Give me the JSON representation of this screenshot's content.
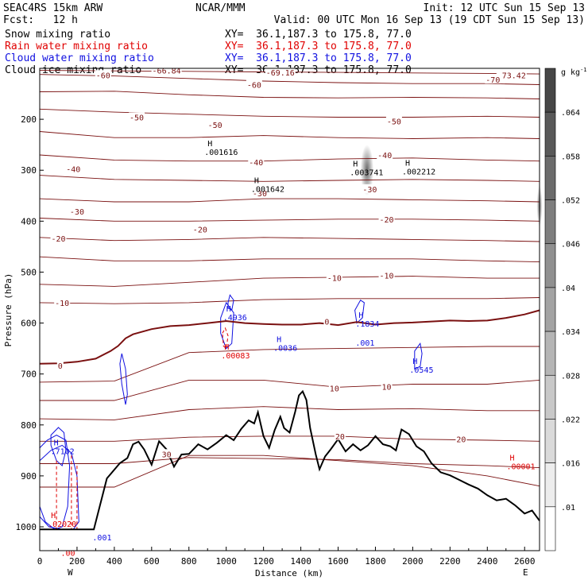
{
  "header": {
    "left_line1": "SEAC4RS 15km ARW",
    "left_line2": "Fcst:   12 h",
    "center_line1": "NCAR/MMM",
    "init": "Init: 12 UTC Sun 15 Sep 13",
    "valid": "Valid: 00 UTC Mon 16 Sep 13 (19 CDT Sun 15 Sep 13)",
    "fields": [
      {
        "name": "Snow mixing ratio",
        "xy": "XY=  36.1,187.3 to 175.8, 77.0",
        "color": "#000000"
      },
      {
        "name": "Rain water mixing ratio",
        "xy": "XY=  36.1,187.3 to 175.8, 77.0",
        "color": "#e00000"
      },
      {
        "name": "Cloud water mixing ratio",
        "xy": "XY=  36.1,187.3 to 175.8, 77.0",
        "color": "#1010e0"
      },
      {
        "name": "Cloud ice mixing ratio",
        "xy": "XY=  36.1,187.3 to 175.8, 77.0",
        "color": "#000000"
      }
    ]
  },
  "colors": {
    "temperature": "#7a1010",
    "freezing": "#7a1010",
    "terrain": "#000000",
    "rain": "#e00000",
    "cloud_water": "#1010e0",
    "snow_shade": "#404040"
  },
  "chart_data": {
    "type": "contour",
    "xlabel": "Distance (km)",
    "ylabel": "Pressure (hPa)",
    "xlim": [
      0,
      2680
    ],
    "ylim_hpa": [
      100,
      1030
    ],
    "x_ticks": [
      0,
      200,
      400,
      600,
      800,
      1000,
      1200,
      1400,
      1600,
      1800,
      2000,
      2200,
      2400,
      2600
    ],
    "y_ticks": [
      200,
      300,
      400,
      500,
      600,
      700,
      800,
      900,
      1000
    ],
    "x_end_labels": {
      "left": "W",
      "right": "E"
    },
    "colorbar": {
      "unit": "g kg",
      "unit_sup": "-1",
      "levels": [
        ".064",
        ".058",
        ".052",
        ".046",
        ".04",
        ".034",
        ".028",
        ".022",
        ".016",
        ".01"
      ]
    },
    "temperature_labels": [
      {
        "x": 340,
        "p": 113,
        "text": "-60"
      },
      {
        "x": 1150,
        "p": 132,
        "text": "-60"
      },
      {
        "x": 2530,
        "p": 113,
        "text": "-73.42"
      },
      {
        "x": 2430,
        "p": 122,
        "text": "-70"
      },
      {
        "x": 1290,
        "p": 108,
        "text": "-69.16"
      },
      {
        "x": 680,
        "p": 104,
        "text": "-66.84"
      },
      {
        "x": 520,
        "p": 196,
        "text": "-50"
      },
      {
        "x": 940,
        "p": 211,
        "text": "-50"
      },
      {
        "x": 1900,
        "p": 204,
        "text": "-50"
      },
      {
        "x": 180,
        "p": 297,
        "text": "-40"
      },
      {
        "x": 1160,
        "p": 284,
        "text": "-40"
      },
      {
        "x": 1850,
        "p": 270,
        "text": "-40"
      },
      {
        "x": 1180,
        "p": 345,
        "text": "-30"
      },
      {
        "x": 200,
        "p": 381,
        "text": "-30"
      },
      {
        "x": 1770,
        "p": 337,
        "text": "-30"
      },
      {
        "x": 100,
        "p": 434,
        "text": "-20"
      },
      {
        "x": 860,
        "p": 416,
        "text": "-20"
      },
      {
        "x": 1860,
        "p": 396,
        "text": "-20"
      },
      {
        "x": 1580,
        "p": 511,
        "text": "-10"
      },
      {
        "x": 1860,
        "p": 506,
        "text": "-10"
      },
      {
        "x": 120,
        "p": 560,
        "text": "-10"
      },
      {
        "x": 110,
        "p": 683,
        "text": "0"
      },
      {
        "x": 1540,
        "p": 597,
        "text": "0"
      },
      {
        "x": 1580,
        "p": 728,
        "text": "10"
      },
      {
        "x": 1860,
        "p": 725,
        "text": "10"
      },
      {
        "x": 1610,
        "p": 822,
        "text": "20"
      },
      {
        "x": 2260,
        "p": 828,
        "text": "20"
      },
      {
        "x": 680,
        "p": 857,
        "text": "30"
      }
    ],
    "extrema_labels": [
      {
        "x": 900,
        "p": 253,
        "h": "H",
        "value": ".001616",
        "color": "#000000"
      },
      {
        "x": 1150,
        "p": 325,
        "h": "H",
        "value": ".001642",
        "color": "#000000"
      },
      {
        "x": 1680,
        "p": 293,
        "h": "H",
        "value": ".003741",
        "color": "#000000"
      },
      {
        "x": 1960,
        "p": 291,
        "h": "H",
        "value": ".002212",
        "color": "#000000"
      },
      {
        "x": 1000,
        "p": 577,
        "h": "H",
        "value": ".4936",
        "color": "#1010e0"
      },
      {
        "x": 990,
        "p": 652,
        "h": "H",
        "value": ".00083",
        "color": "#e00000"
      },
      {
        "x": 1270,
        "p": 637,
        "h": "H",
        "value": ".0036",
        "color": "#1010e0"
      },
      {
        "x": 1710,
        "p": 590,
        "h": "H",
        "value": ".1834",
        "color": "#1010e0"
      },
      {
        "x": 1710,
        "p": 627,
        "h": "",
        "value": ".001",
        "color": "#1010e0"
      },
      {
        "x": 2000,
        "p": 680,
        "h": "H",
        "value": ".0545",
        "color": "#1010e0"
      },
      {
        "x": 2520,
        "p": 870,
        "h": "H",
        "value": ".00001",
        "color": "#e00000"
      },
      {
        "x": 75,
        "p": 840,
        "h": "H",
        "value": ".7102",
        "color": "#1010e0"
      },
      {
        "x": 60,
        "p": 983,
        "h": "H",
        "value": ".02020",
        "color": "#e00000"
      },
      {
        "x": 300,
        "p": 1009,
        "h": "",
        "value": ".001",
        "color": "#1010e0"
      },
      {
        "x": 130,
        "p": 1040,
        "h": "",
        "value": ".00",
        "color": "#e00000"
      }
    ],
    "terrain": {
      "x": [
        0,
        80,
        160,
        240,
        290,
        360,
        430,
        470,
        500,
        530,
        560,
        600,
        640,
        680,
        720,
        760,
        800,
        850,
        900,
        950,
        1000,
        1040,
        1080,
        1120,
        1150,
        1170,
        1200,
        1230,
        1260,
        1290,
        1310,
        1340,
        1370,
        1390,
        1410,
        1430,
        1450,
        1480,
        1500,
        1530,
        1560,
        1600,
        1640,
        1680,
        1720,
        1760,
        1800,
        1840,
        1880,
        1910,
        1940,
        1980,
        2020,
        2060,
        2100,
        2150,
        2200,
        2250,
        2300,
        2350,
        2400,
        2450,
        2500,
        2550,
        2600,
        2640,
        2680
      ],
      "p": [
        1005,
        1005,
        1005,
        1005,
        1005,
        905,
        875,
        865,
        838,
        833,
        848,
        878,
        832,
        848,
        882,
        858,
        857,
        838,
        848,
        835,
        820,
        830,
        808,
        791,
        797,
        775,
        822,
        845,
        810,
        784,
        806,
        815,
        774,
        742,
        734,
        751,
        806,
        858,
        887,
        862,
        848,
        828,
        852,
        838,
        850,
        840,
        822,
        838,
        842,
        850,
        809,
        818,
        842,
        852,
        875,
        893,
        899,
        908,
        917,
        925,
        938,
        948,
        945,
        958,
        974,
        968,
        988
      ]
    },
    "freezing_line": {
      "x": [
        0,
        100,
        200,
        300,
        380,
        420,
        460,
        500,
        600,
        700,
        800,
        900,
        1000,
        1100,
        1200,
        1300,
        1400,
        1500,
        1600,
        1700,
        1800,
        1900,
        2000,
        2100,
        2200,
        2300,
        2400,
        2500,
        2600,
        2680
      ],
      "p": [
        680,
        679,
        676,
        670,
        655,
        645,
        630,
        622,
        612,
        606,
        604,
        600,
        596,
        600,
        602,
        603,
        603,
        600,
        604,
        598,
        603,
        600,
        599,
        597,
        595,
        596,
        595,
        590,
        583,
        575
      ]
    },
    "temperature_contours": [
      {
        "value": -70,
        "x": [
          0,
          400,
          800,
          1200,
          1600,
          2000,
          2400,
          2680
        ],
        "p": [
          104,
          105,
          106,
          107,
          108,
          109,
          110,
          111
        ]
      },
      {
        "value": -60,
        "x": [
          0,
          400,
          800,
          1200,
          1600,
          2000,
          2400,
          2680
        ],
        "p": [
          112,
          115,
          120,
          125,
          128,
          130,
          130,
          132
        ]
      },
      {
        "value": -55,
        "x": [
          0,
          400,
          800,
          1200,
          1600,
          2000,
          2400,
          2680
        ],
        "p": [
          146,
          145,
          152,
          157,
          158,
          157,
          158,
          160
        ]
      },
      {
        "value": -50,
        "x": [
          0,
          400,
          800,
          1200,
          1600,
          2000,
          2400,
          2680
        ],
        "p": [
          180,
          186,
          190,
          194,
          196,
          196,
          194,
          196
        ]
      },
      {
        "value": -45,
        "x": [
          0,
          400,
          800,
          1200,
          1600,
          2000,
          2400,
          2680
        ],
        "p": [
          224,
          236,
          236,
          232,
          236,
          238,
          236,
          238
        ]
      },
      {
        "value": -40,
        "x": [
          0,
          400,
          800,
          1200,
          1600,
          2000,
          2400,
          2680
        ],
        "p": [
          270,
          280,
          282,
          282,
          278,
          276,
          280,
          282
        ]
      },
      {
        "value": -35,
        "x": [
          0,
          400,
          800,
          1200,
          1600,
          2000,
          2400,
          2680
        ],
        "p": [
          310,
          318,
          320,
          322,
          320,
          318,
          320,
          322
        ]
      },
      {
        "value": -30,
        "x": [
          0,
          400,
          800,
          1200,
          1600,
          2000,
          2400,
          2680
        ],
        "p": [
          356,
          362,
          362,
          356,
          356,
          358,
          360,
          362
        ]
      },
      {
        "value": -25,
        "x": [
          0,
          400,
          800,
          1200,
          1600,
          2000,
          2400,
          2680
        ],
        "p": [
          394,
          400,
          400,
          398,
          396,
          396,
          398,
          400
        ]
      },
      {
        "value": -20,
        "x": [
          0,
          400,
          800,
          1200,
          1600,
          2000,
          2400,
          2680
        ],
        "p": [
          432,
          438,
          436,
          432,
          434,
          436,
          438,
          440
        ]
      },
      {
        "value": -15,
        "x": [
          0,
          400,
          800,
          1200,
          1600,
          2000,
          2400,
          2680
        ],
        "p": [
          470,
          478,
          478,
          474,
          474,
          474,
          478,
          480
        ]
      },
      {
        "value": -10,
        "x": [
          0,
          400,
          800,
          1200,
          1600,
          2000,
          2400,
          2680
        ],
        "p": [
          524,
          528,
          520,
          512,
          510,
          508,
          512,
          512
        ]
      },
      {
        "value": -5,
        "x": [
          0,
          400,
          800,
          1200,
          1600,
          2000,
          2400,
          2680
        ],
        "p": [
          560,
          562,
          560,
          554,
          552,
          552,
          552,
          550
        ]
      },
      {
        "value": 5,
        "x": [
          0,
          400,
          800,
          1200,
          1600,
          2000,
          2400,
          2680
        ],
        "p": [
          716,
          714,
          658,
          652,
          650,
          648,
          646,
          646
        ]
      },
      {
        "value": 10,
        "x": [
          0,
          400,
          800,
          1200,
          1600,
          2000,
          2400,
          2680
        ],
        "p": [
          752,
          752,
          712,
          712,
          726,
          720,
          720,
          712
        ]
      },
      {
        "value": 15,
        "x": [
          0,
          400,
          800,
          1200,
          1600,
          2000,
          2400,
          2680
        ],
        "p": [
          788,
          790,
          770,
          764,
          770,
          768,
          772,
          772
        ]
      },
      {
        "value": 20,
        "x": [
          0,
          400,
          800,
          1200,
          1600,
          2000,
          2400,
          2680
        ],
        "p": [
          832,
          832,
          824,
          822,
          822,
          828,
          830,
          832
        ]
      },
      {
        "value": 25,
        "x": [
          0,
          400,
          800,
          1200,
          1600,
          2000,
          2400,
          2680
        ],
        "p": [
          876,
          876,
          864,
          866,
          868,
          876,
          880,
          884
        ]
      },
      {
        "value": 30,
        "x": [
          0,
          400,
          800,
          1200,
          1600,
          2000,
          2400,
          2680
        ],
        "p": [
          922,
          922,
          860,
          860,
          870,
          880,
          900,
          920
        ]
      }
    ],
    "snow_shading": [
      {
        "x": 1755,
        "p": 300,
        "rx_km": 35,
        "rp": 50,
        "opacity": 0.8
      },
      {
        "x": 2680,
        "p": 370,
        "rx_km": 15,
        "rp": 40,
        "opacity": 0.7
      }
    ],
    "cloud_water_contours": [
      {
        "x": [
          440,
          460,
          470,
          460,
          440,
          430
        ],
        "p": [
          660,
          690,
          740,
          760,
          720,
          680
        ]
      },
      {
        "x": [
          970,
          1000,
          1040,
          1030,
          1000,
          970
        ],
        "p": [
          590,
          560,
          580,
          640,
          650,
          620
        ]
      },
      {
        "x": [
          1010,
          1020,
          1040,
          1030,
          1010
        ],
        "p": [
          560,
          545,
          555,
          575,
          570
        ]
      },
      {
        "x": [
          1690,
          1720,
          1740,
          1730,
          1700
        ],
        "p": [
          575,
          555,
          560,
          590,
          600
        ]
      },
      {
        "x": [
          2010,
          2040,
          2050,
          2040,
          2010
        ],
        "p": [
          655,
          640,
          660,
          685,
          690
        ]
      },
      {
        "x": [
          60,
          100,
          130,
          140,
          120,
          90,
          60
        ],
        "p": [
          820,
          805,
          815,
          850,
          880,
          870,
          840
        ]
      },
      {
        "x": [
          0,
          40,
          90,
          140,
          160,
          150,
          120,
          80,
          30,
          0
        ],
        "p": [
          845,
          830,
          820,
          830,
          880,
          960,
          1000,
          1005,
          990,
          960
        ]
      },
      {
        "x": [
          0,
          60,
          120,
          170,
          200,
          210,
          180,
          120,
          50,
          0
        ],
        "p": [
          870,
          850,
          840,
          855,
          900,
          990,
          1005,
          1005,
          1000,
          980
        ]
      }
    ],
    "rain_contours": [
      {
        "x": [
          90,
          90
        ],
        "p": [
          870,
          1005
        ]
      },
      {
        "x": [
          170,
          170
        ],
        "p": [
          860,
          1005
        ]
      },
      {
        "x": [
          200,
          200
        ],
        "p": [
          880,
          1005
        ]
      },
      {
        "x": [
          980,
          995,
          1010,
          1000,
          985
        ],
        "p": [
          620,
          610,
          625,
          650,
          645
        ]
      }
    ]
  }
}
